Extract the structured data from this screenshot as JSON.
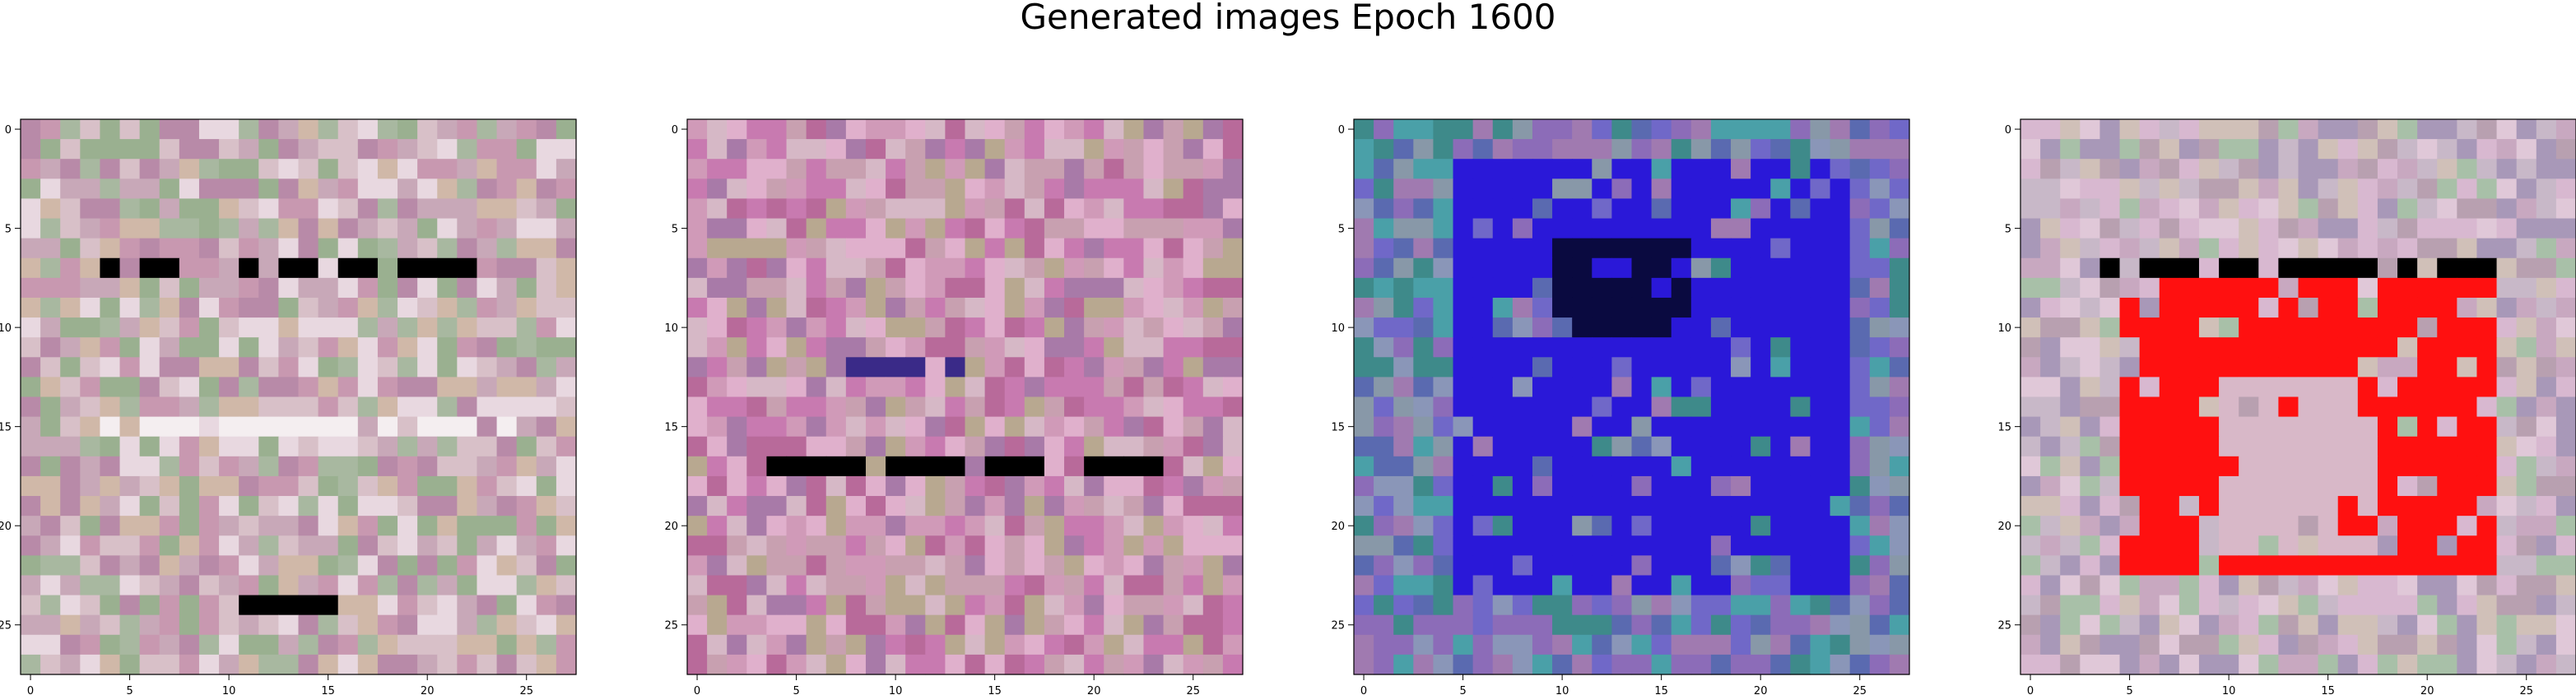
{
  "figure": {
    "title": "Generated images Epoch 1600"
  },
  "chart_data": [
    {
      "type": "heatmap",
      "panel": 1,
      "grid_size": [
        28,
        28
      ],
      "xticks": [
        "0",
        "5",
        "10",
        "15",
        "20",
        "25"
      ],
      "yticks": [
        "0",
        "5",
        "10",
        "15",
        "20",
        "25"
      ],
      "palette": [
        "#c8a8b8",
        "#b88aa8",
        "#d8c0c8",
        "#a8b8a0",
        "#e8d8e0",
        "#9ab090",
        "#c898b0",
        "#d0b8a8"
      ],
      "features": [
        {
          "row": 7,
          "col_start": 4,
          "col_end": 22,
          "color": "#000000"
        },
        {
          "row": 15,
          "col_start": 4,
          "col_end": 24,
          "color": "#f4eef0"
        },
        {
          "row": 24,
          "col_start": 11,
          "col_end": 15,
          "color": "#000000"
        }
      ]
    },
    {
      "type": "heatmap",
      "panel": 2,
      "grid_size": [
        28,
        28
      ],
      "xticks": [
        "0",
        "5",
        "10",
        "15",
        "20",
        "25"
      ],
      "yticks": [
        "0",
        "5",
        "10",
        "15",
        "20",
        "25"
      ],
      "palette": [
        "#c87ab0",
        "#b86a9a",
        "#d09ab8",
        "#b8a890",
        "#e0b0cc",
        "#a87aa8",
        "#c8a0b0",
        "#d6b8c6"
      ],
      "features": [
        {
          "row": 12,
          "col_start": 8,
          "col_end": 14,
          "color": "#3a2a88"
        },
        {
          "row": 17,
          "col_start": 4,
          "col_end": 23,
          "color": "#000000"
        }
      ]
    },
    {
      "type": "heatmap",
      "panel": 3,
      "grid_size": [
        28,
        28
      ],
      "xticks": [
        "0",
        "5",
        "10",
        "15",
        "20",
        "25"
      ],
      "yticks": [
        "0",
        "5",
        "10",
        "15",
        "20",
        "25"
      ],
      "palette": [
        "#5a6ab0",
        "#8c6cb8",
        "#3e8a8a",
        "#8a96b8",
        "#7068c8",
        "#a07ab0",
        "#4aa0a8",
        "#8898a8"
      ],
      "features": [
        {
          "row_start": 2,
          "row_end": 23,
          "col_start": 5,
          "col_end": 24,
          "color": "#2a18d8"
        },
        {
          "row_start": 6,
          "row_end": 10,
          "col_start": 10,
          "col_end": 16,
          "color": "#0a0a40"
        }
      ]
    },
    {
      "type": "heatmap",
      "panel": 4,
      "grid_size": [
        28,
        28
      ],
      "xticks": [
        "0",
        "5",
        "10",
        "15",
        "20",
        "25"
      ],
      "yticks": [
        "0",
        "5",
        "10",
        "15",
        "20",
        "25"
      ],
      "palette": [
        "#c8a8c0",
        "#b8a0b0",
        "#d8b8d0",
        "#a8c0a8",
        "#e0c8d8",
        "#a898b8",
        "#c8b8c8",
        "#d0c0b8"
      ],
      "features": [
        {
          "row": 7,
          "col_start": 4,
          "col_end": 23,
          "color": "#000000"
        },
        {
          "row_start": 8,
          "row_end": 22,
          "col_start": 5,
          "col_end": 23,
          "color": "#ff1010"
        },
        {
          "row_start": 13,
          "row_end": 21,
          "col_start": 10,
          "col_end": 17,
          "color": "#d8b8c8"
        }
      ]
    }
  ]
}
